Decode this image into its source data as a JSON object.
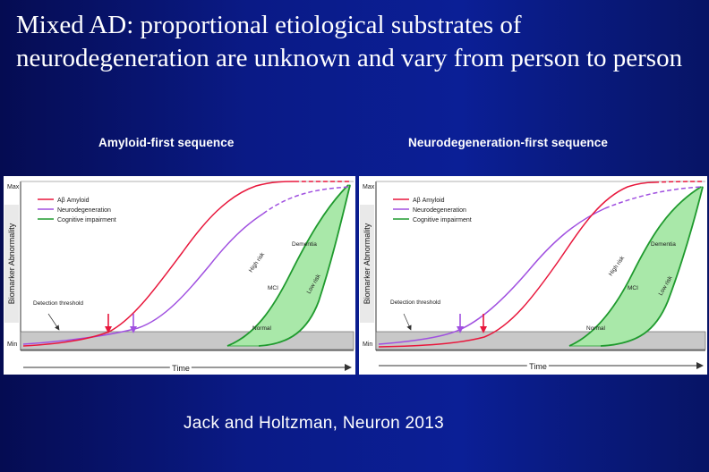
{
  "slide": {
    "title": "Mixed AD: proportional etiological substrates of neurodegeneration are unknown and vary from person to person",
    "citation": "Jack and Holtzman, Neuron 2013"
  },
  "panels": [
    {
      "caption": "Amyloid-first sequence",
      "y_axis": {
        "label": "Biomarker Abnormality",
        "max": "Max",
        "min": "Min"
      },
      "x_axis": {
        "label": "Time"
      },
      "legend": [
        "Aβ Amyloid",
        "Neurodegeneration",
        "Cognitive impairment"
      ],
      "annotations": {
        "detection": "Detection threshold",
        "high_risk": "High risk",
        "low_risk": "Low risk",
        "mci": "MCI",
        "dementia": "Dementia",
        "normal": "Normal"
      },
      "colors": {
        "amyloid": "#e8173c",
        "neuro": "#a050e0",
        "cognitive": "#1f9a2e",
        "cognitive_fill": "#a9e8a9",
        "threshold": "#c8c8c8"
      }
    },
    {
      "caption": "Neurodegeneration-first sequence",
      "y_axis": {
        "label": "Biomarker Abnormality",
        "max": "Max",
        "min": "Min"
      },
      "x_axis": {
        "label": "Time"
      },
      "legend": [
        "Aβ Amyloid",
        "Neurodegeneration",
        "Cognitive impairment"
      ],
      "annotations": {
        "detection": "Detection threshold",
        "high_risk": "High risk",
        "low_risk": "Low risk",
        "mci": "MCI",
        "dementia": "Dementia",
        "normal": "Normal"
      },
      "colors": {
        "amyloid": "#e8173c",
        "neuro": "#a050e0",
        "cognitive": "#1f9a2e",
        "cognitive_fill": "#a9e8a9",
        "threshold": "#c8c8c8"
      }
    }
  ]
}
